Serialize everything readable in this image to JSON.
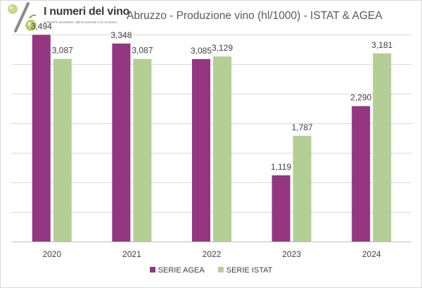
{
  "logo": {
    "title": "I numeri del vino",
    "subtitle": "Statistiche produttive, dati di mercato e di consumo"
  },
  "chart_data": {
    "type": "bar",
    "title": "Abruzzo - Produzione vino (hl/1000) - ISTAT & AGEA",
    "xlabel": "",
    "ylabel": "",
    "categories": [
      "2020",
      "2021",
      "2022",
      "2023",
      "2024"
    ],
    "series": [
      {
        "name": "SERIE AGEA",
        "values": [
          3494,
          3348,
          3085,
          1119,
          2290
        ],
        "labels": [
          "3,494",
          "3,348",
          "3,085",
          "1,119",
          "2,290"
        ],
        "color": "#943682"
      },
      {
        "name": "SERIE ISTAT",
        "values": [
          3087,
          3087,
          3129,
          1787,
          3181
        ],
        "labels": [
          "3,087",
          "3,087",
          "3,129",
          "1,787",
          "3,181"
        ],
        "color": "#b3cf95"
      }
    ],
    "ylim": [
      0,
      3500
    ],
    "grid": true,
    "legend": "bottom"
  }
}
